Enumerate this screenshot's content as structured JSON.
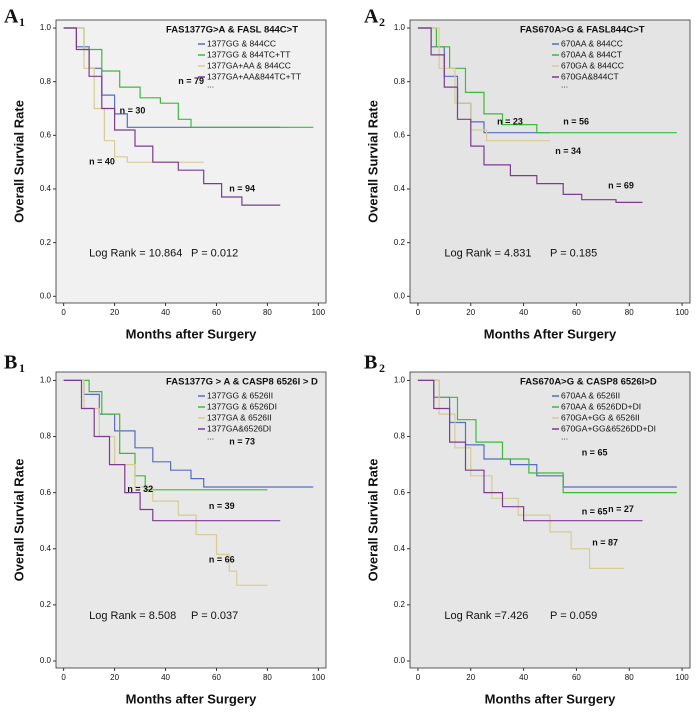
{
  "chart_data": [
    {
      "type": "line",
      "panel": "A",
      "panel_sub": "1",
      "title": "FAS1377G>A & FASL 844C>T",
      "xlabel": "Months after Surgery",
      "ylabel": "Overall Survial Rate",
      "xlim": [
        -3,
        103
      ],
      "ylim": [
        -0.025,
        1.03
      ],
      "xticks": [
        0,
        20,
        40,
        60,
        80,
        100
      ],
      "yticks": [
        {
          "value": 0,
          "label": "0.0"
        },
        0.2,
        0.4,
        0.6,
        0.8,
        {
          "value": 1,
          "label": "1.0"
        }
      ],
      "legend_more": "...",
      "series": [
        {
          "name": "1377GG & 844CC",
          "color": "#5a6bc0",
          "x": [
            0,
            5,
            5,
            10,
            10,
            15,
            15,
            20,
            20,
            25,
            25,
            85
          ],
          "values": [
            1,
            1,
            0.93,
            0.93,
            0.85,
            0.85,
            0.75,
            0.75,
            0.68,
            0.68,
            0.63,
            0.63
          ]
        },
        {
          "name": "1377GG & 844TC+TT",
          "color": "#3cba3c",
          "x": [
            0,
            8,
            8,
            15,
            15,
            22,
            22,
            30,
            30,
            38,
            38,
            45,
            45,
            50,
            50,
            98
          ],
          "values": [
            1,
            1,
            0.92,
            0.92,
            0.84,
            0.84,
            0.78,
            0.78,
            0.74,
            0.74,
            0.72,
            0.72,
            0.66,
            0.66,
            0.63,
            0.63
          ]
        },
        {
          "name": "1377GA+AA & 844CC",
          "color": "#d6cc94",
          "x": [
            0,
            8,
            8,
            12,
            12,
            16,
            16,
            20,
            20,
            25,
            25,
            55
          ],
          "values": [
            1,
            1,
            0.85,
            0.85,
            0.7,
            0.7,
            0.58,
            0.58,
            0.52,
            0.52,
            0.5,
            0.5
          ]
        },
        {
          "name": "1377GA+AA&844TC+TT",
          "color": "#7a3d8e",
          "x": [
            0,
            5,
            5,
            10,
            10,
            15,
            15,
            20,
            20,
            28,
            28,
            35,
            35,
            45,
            45,
            55,
            55,
            62,
            62,
            70,
            70,
            85
          ],
          "values": [
            1,
            1,
            0.92,
            0.92,
            0.82,
            0.82,
            0.7,
            0.7,
            0.62,
            0.62,
            0.56,
            0.56,
            0.5,
            0.5,
            0.47,
            0.47,
            0.42,
            0.42,
            0.37,
            0.37,
            0.34,
            0.34
          ]
        }
      ],
      "annotations": [
        "n = 30",
        "n = 79",
        "n =  40",
        "n = 94"
      ],
      "stats": [
        "Log Rank = 10.864",
        "P = 0.012"
      ]
    },
    {
      "type": "line",
      "panel": "A",
      "panel_sub": "2",
      "title": "FAS670A>G & FASL844C>T",
      "xlabel": "Months After Surgery",
      "ylabel": "Overall Survial Rate",
      "xlim": [
        -3,
        103
      ],
      "ylim": [
        -0.025,
        1.03
      ],
      "xticks": [
        0,
        20,
        40,
        60,
        80,
        100
      ],
      "yticks": [
        {
          "value": 0,
          "label": "0.0"
        },
        0.2,
        0.4,
        0.6,
        0.8,
        {
          "value": 1,
          "label": "1.0"
        }
      ],
      "legend_more": "...",
      "series": [
        {
          "name": "670AA & 844CC",
          "color": "#5a6bc0",
          "x": [
            0,
            5,
            5,
            10,
            10,
            15,
            15,
            20,
            20,
            25,
            25,
            50
          ],
          "values": [
            1,
            1,
            0.93,
            0.93,
            0.82,
            0.82,
            0.72,
            0.72,
            0.65,
            0.65,
            0.61,
            0.61
          ]
        },
        {
          "name": "670AA & 844CT",
          "color": "#3cba3c",
          "x": [
            0,
            7,
            7,
            12,
            12,
            18,
            18,
            25,
            25,
            32,
            32,
            45,
            45,
            98
          ],
          "values": [
            1,
            1,
            0.93,
            0.93,
            0.85,
            0.85,
            0.76,
            0.76,
            0.68,
            0.68,
            0.64,
            0.64,
            0.61,
            0.61
          ]
        },
        {
          "name": "670GA & 844CC",
          "color": "#d6cc94",
          "x": [
            0,
            8,
            8,
            14,
            14,
            20,
            20,
            26,
            26,
            50
          ],
          "values": [
            1,
            1,
            0.85,
            0.85,
            0.72,
            0.72,
            0.62,
            0.62,
            0.58,
            0.58
          ]
        },
        {
          "name": "670GA&844CT",
          "color": "#7a3d8e",
          "x": [
            0,
            5,
            5,
            10,
            10,
            15,
            15,
            20,
            20,
            25,
            25,
            35,
            35,
            45,
            45,
            55,
            55,
            62,
            62,
            75,
            75,
            85
          ],
          "values": [
            1,
            1,
            0.9,
            0.9,
            0.78,
            0.78,
            0.66,
            0.66,
            0.56,
            0.56,
            0.49,
            0.49,
            0.45,
            0.45,
            0.42,
            0.42,
            0.38,
            0.38,
            0.36,
            0.36,
            0.35,
            0.35
          ]
        }
      ],
      "annotations": [
        "n = 23",
        "n = 56",
        "n = 34",
        "n = 69"
      ],
      "stats": [
        "Log Rank = 4.831",
        "P = 0.185"
      ]
    },
    {
      "type": "line",
      "panel": "B",
      "panel_sub": "1",
      "title": "FAS1377G > A & CASP8 6526I > D",
      "xlabel": "Months after Surgery",
      "ylabel": "Overall Survial Rate",
      "xlim": [
        -3,
        103
      ],
      "ylim": [
        -0.025,
        1.03
      ],
      "xticks": [
        0,
        20,
        40,
        60,
        80,
        100
      ],
      "yticks": [
        {
          "value": 0,
          "label": "0.0"
        },
        0.2,
        0.4,
        0.6,
        0.8,
        {
          "value": 1,
          "label": "1.0"
        }
      ],
      "legend_more": "...",
      "series": [
        {
          "name": "1377GG & 6526II",
          "color": "#5a6bc0",
          "x": [
            0,
            8,
            8,
            14,
            14,
            20,
            20,
            28,
            28,
            35,
            35,
            42,
            42,
            50,
            50,
            55,
            55,
            98
          ],
          "values": [
            1,
            1,
            0.95,
            0.95,
            0.88,
            0.88,
            0.82,
            0.82,
            0.76,
            0.76,
            0.71,
            0.71,
            0.68,
            0.68,
            0.65,
            0.65,
            0.62,
            0.62
          ]
        },
        {
          "name": "1377GG & 6526DI",
          "color": "#3cba3c",
          "x": [
            0,
            10,
            10,
            15,
            15,
            22,
            22,
            28,
            28,
            32,
            32,
            80
          ],
          "values": [
            1,
            1,
            0.96,
            0.96,
            0.88,
            0.88,
            0.74,
            0.74,
            0.66,
            0.66,
            0.61,
            0.61
          ]
        },
        {
          "name": "1377GA & 6526II",
          "color": "#d6cc94",
          "x": [
            0,
            8,
            8,
            14,
            14,
            20,
            20,
            28,
            28,
            35,
            35,
            45,
            45,
            52,
            52,
            60,
            60,
            65,
            65,
            68,
            68,
            80
          ],
          "values": [
            1,
            1,
            0.9,
            0.9,
            0.8,
            0.8,
            0.7,
            0.7,
            0.62,
            0.62,
            0.57,
            0.57,
            0.52,
            0.52,
            0.45,
            0.45,
            0.38,
            0.38,
            0.32,
            0.32,
            0.27,
            0.27
          ]
        },
        {
          "name": "1377GA&6526DI",
          "color": "#7a3d8e",
          "x": [
            0,
            7,
            7,
            12,
            12,
            18,
            18,
            24,
            24,
            30,
            30,
            35,
            35,
            85
          ],
          "values": [
            1,
            1,
            0.9,
            0.9,
            0.8,
            0.8,
            0.7,
            0.7,
            0.6,
            0.6,
            0.54,
            0.54,
            0.5,
            0.5
          ]
        }
      ],
      "annotations": [
        "n = 73",
        "n = 32",
        "n = 39",
        "n = 66"
      ],
      "stats": [
        "Log Rank = 8.508",
        "P = 0.037"
      ]
    },
    {
      "type": "line",
      "panel": "B",
      "panel_sub": "2",
      "title": "FAS670A>G & CASP8 6526I>D",
      "xlabel": "Months after Surgery",
      "ylabel": "Overall Survial Rate",
      "xlim": [
        -3,
        103
      ],
      "ylim": [
        -0.025,
        1.03
      ],
      "xticks": [
        0,
        20,
        40,
        60,
        80,
        100
      ],
      "yticks": [
        {
          "value": 0,
          "label": "0.0"
        },
        0.2,
        0.4,
        0.6,
        0.8,
        {
          "value": 1,
          "label": "1.0"
        }
      ],
      "legend_more": "...",
      "series": [
        {
          "name": "670AA & 6526II",
          "color": "#5a6bc0",
          "x": [
            0,
            6,
            6,
            12,
            12,
            18,
            18,
            25,
            25,
            35,
            35,
            45,
            45,
            55,
            55,
            98
          ],
          "values": [
            1,
            1,
            0.94,
            0.94,
            0.85,
            0.85,
            0.77,
            0.77,
            0.72,
            0.72,
            0.7,
            0.7,
            0.66,
            0.66,
            0.62,
            0.62
          ]
        },
        {
          "name": "670AA & 6526DD+DI",
          "color": "#3cba3c",
          "x": [
            0,
            8,
            8,
            15,
            15,
            22,
            22,
            32,
            32,
            42,
            42,
            55,
            55,
            98
          ],
          "values": [
            1,
            1,
            0.94,
            0.94,
            0.86,
            0.86,
            0.78,
            0.78,
            0.72,
            0.72,
            0.67,
            0.67,
            0.6,
            0.6
          ]
        },
        {
          "name": "670GA+GG & 6526II",
          "color": "#d6cc94",
          "x": [
            0,
            8,
            8,
            14,
            14,
            20,
            20,
            28,
            28,
            38,
            38,
            50,
            50,
            58,
            58,
            65,
            65,
            78
          ],
          "values": [
            1,
            1,
            0.88,
            0.88,
            0.76,
            0.76,
            0.66,
            0.66,
            0.58,
            0.58,
            0.52,
            0.52,
            0.46,
            0.46,
            0.4,
            0.4,
            0.33,
            0.33
          ]
        },
        {
          "name": "670GA+GG&6526DD+DI",
          "color": "#7a3d8e",
          "x": [
            0,
            6,
            6,
            12,
            12,
            18,
            18,
            25,
            25,
            32,
            32,
            40,
            40,
            85
          ],
          "values": [
            1,
            1,
            0.9,
            0.9,
            0.78,
            0.78,
            0.68,
            0.68,
            0.6,
            0.6,
            0.55,
            0.55,
            0.5,
            0.5
          ]
        }
      ],
      "annotations": [
        "n = 65",
        "n = 27",
        "n = 65",
        "n = 87"
      ],
      "stats": [
        "Log Rank =7.426",
        "P = 0.059"
      ]
    }
  ]
}
